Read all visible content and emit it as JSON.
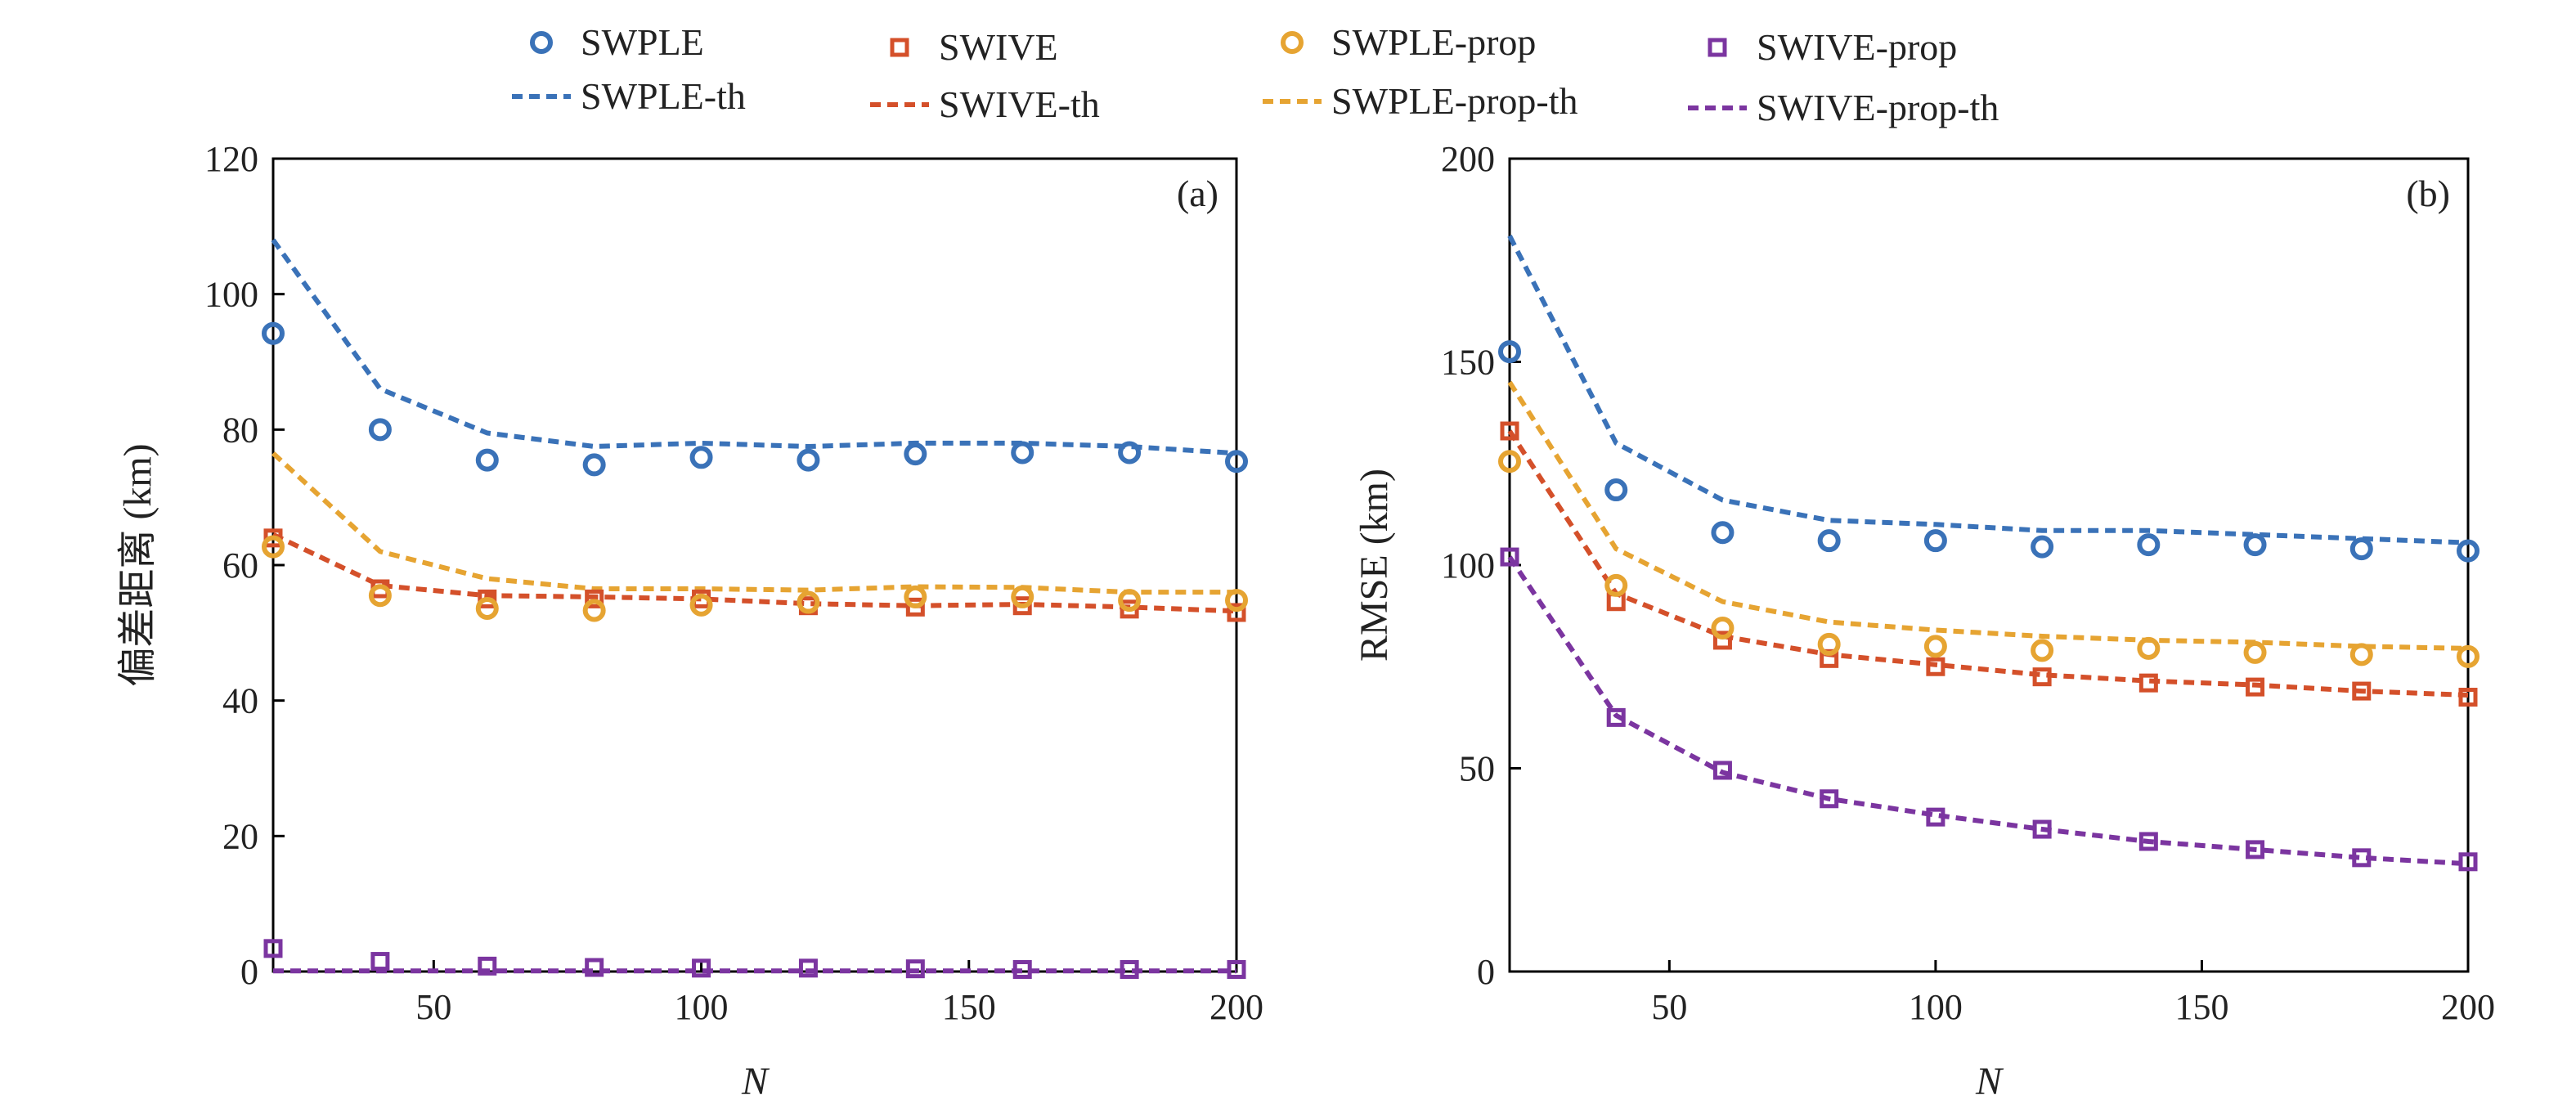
{
  "legend": [
    {
      "label": "SWPLE",
      "color": "#3a72b8",
      "kind": "marker",
      "marker": "circle"
    },
    {
      "label": "SWIVE",
      "color": "#d4502a",
      "kind": "marker",
      "marker": "square"
    },
    {
      "label": "SWPLE-prop",
      "color": "#e6a432",
      "kind": "marker",
      "marker": "circle"
    },
    {
      "label": "SWIVE-prop",
      "color": "#7b35a0",
      "kind": "marker",
      "marker": "square"
    },
    {
      "label": "SWPLE-th",
      "color": "#3a72b8",
      "kind": "line"
    },
    {
      "label": "SWIVE-th",
      "color": "#d4502a",
      "kind": "line"
    },
    {
      "label": "SWPLE-prop-th",
      "color": "#e6a432",
      "kind": "line"
    },
    {
      "label": "SWIVE-prop-th",
      "color": "#7b35a0",
      "kind": "line"
    }
  ],
  "chart_data": [
    {
      "type": "line",
      "panel_label": "(a)",
      "xlabel": "N",
      "ylabel": "偏差距离 (km)",
      "xlim": [
        20,
        200
      ],
      "ylim": [
        0,
        120
      ],
      "xticks": [
        50,
        100,
        150,
        200
      ],
      "yticks": [
        0,
        20,
        40,
        60,
        80,
        100,
        120
      ],
      "x": [
        20,
        40,
        60,
        80,
        100,
        120,
        140,
        160,
        180,
        200
      ],
      "series": [
        {
          "name": "SWPLE",
          "style": "marker",
          "marker": "circle",
          "color": "#3a72b8",
          "values": [
            94.2,
            80.0,
            75.5,
            74.8,
            75.9,
            75.5,
            76.4,
            76.6,
            76.6,
            75.3
          ]
        },
        {
          "name": "SWIVE",
          "style": "marker",
          "marker": "square",
          "color": "#d4502a",
          "values": [
            64.0,
            56.5,
            55.0,
            55.0,
            55.0,
            54.0,
            53.8,
            54.0,
            53.5,
            53.0
          ]
        },
        {
          "name": "SWPLE-prop",
          "style": "marker",
          "marker": "circle",
          "color": "#e6a432",
          "values": [
            62.7,
            55.5,
            53.6,
            53.3,
            54.1,
            54.5,
            55.3,
            55.3,
            54.8,
            54.8
          ]
        },
        {
          "name": "SWIVE-prop",
          "style": "marker",
          "marker": "square",
          "color": "#7b35a0",
          "values": [
            3.4,
            1.5,
            0.8,
            0.6,
            0.5,
            0.5,
            0.4,
            0.3,
            0.3,
            0.3
          ]
        },
        {
          "name": "SWPLE-th",
          "style": "line",
          "color": "#3a72b8",
          "values": [
            108.0,
            86.0,
            79.5,
            77.5,
            78.0,
            77.5,
            78.0,
            78.0,
            77.5,
            76.5
          ]
        },
        {
          "name": "SWIVE-th",
          "style": "line",
          "color": "#d4502a",
          "values": [
            64.5,
            57.0,
            55.5,
            55.3,
            55.0,
            54.3,
            54.0,
            54.2,
            53.8,
            53.2
          ]
        },
        {
          "name": "SWPLE-prop-th",
          "style": "line",
          "color": "#e6a432",
          "values": [
            76.5,
            62.0,
            58.0,
            56.5,
            56.5,
            56.3,
            56.8,
            56.7,
            56.0,
            56.0
          ]
        },
        {
          "name": "SWIVE-prop-th",
          "style": "line",
          "color": "#7b35a0",
          "values": [
            0.1,
            0.1,
            0.1,
            0.1,
            0.1,
            0.1,
            0.1,
            0.1,
            0.1,
            0.1
          ]
        }
      ]
    },
    {
      "type": "line",
      "panel_label": "(b)",
      "xlabel": "N",
      "ylabel": "RMSE (km)",
      "xlim": [
        20,
        200
      ],
      "ylim": [
        0,
        200
      ],
      "xticks": [
        50,
        100,
        150,
        200
      ],
      "yticks": [
        0,
        50,
        100,
        150,
        200
      ],
      "x": [
        20,
        40,
        60,
        80,
        100,
        120,
        140,
        160,
        180,
        200
      ],
      "series": [
        {
          "name": "SWPLE",
          "style": "marker",
          "marker": "circle",
          "color": "#3a72b8",
          "values": [
            152.5,
            118.5,
            108.0,
            106.0,
            106.0,
            104.5,
            105.0,
            105.0,
            104.0,
            103.5
          ]
        },
        {
          "name": "SWIVE",
          "style": "marker",
          "marker": "square",
          "color": "#d4502a",
          "values": [
            133.0,
            91.0,
            81.5,
            77.0,
            75.0,
            72.5,
            71.0,
            70.0,
            69.0,
            67.5
          ]
        },
        {
          "name": "SWPLE-prop",
          "style": "marker",
          "marker": "circle",
          "color": "#e6a432",
          "values": [
            125.5,
            95.0,
            84.5,
            80.5,
            80.0,
            79.0,
            79.5,
            78.5,
            78.0,
            77.5
          ]
        },
        {
          "name": "SWIVE-prop",
          "style": "marker",
          "marker": "square",
          "color": "#7b35a0",
          "values": [
            102.0,
            62.5,
            49.5,
            42.5,
            38.0,
            35.0,
            32.0,
            30.0,
            28.0,
            27.0
          ]
        },
        {
          "name": "SWPLE-th",
          "style": "line",
          "color": "#3a72b8",
          "values": [
            181.0,
            130.0,
            116.0,
            111.0,
            110.0,
            108.5,
            108.5,
            107.5,
            106.5,
            105.5
          ]
        },
        {
          "name": "SWIVE-th",
          "style": "line",
          "color": "#d4502a",
          "values": [
            133.0,
            93.0,
            82.5,
            78.0,
            75.5,
            73.0,
            71.5,
            70.5,
            69.0,
            68.0
          ]
        },
        {
          "name": "SWPLE-prop-th",
          "style": "line",
          "color": "#e6a432",
          "values": [
            145.0,
            104.0,
            91.0,
            86.0,
            84.0,
            82.5,
            81.5,
            81.0,
            80.0,
            79.5
          ]
        },
        {
          "name": "SWIVE-prop-th",
          "style": "line",
          "color": "#7b35a0",
          "values": [
            102.0,
            63.0,
            49.0,
            42.5,
            38.5,
            35.0,
            32.0,
            30.0,
            28.0,
            26.5
          ]
        }
      ]
    }
  ]
}
